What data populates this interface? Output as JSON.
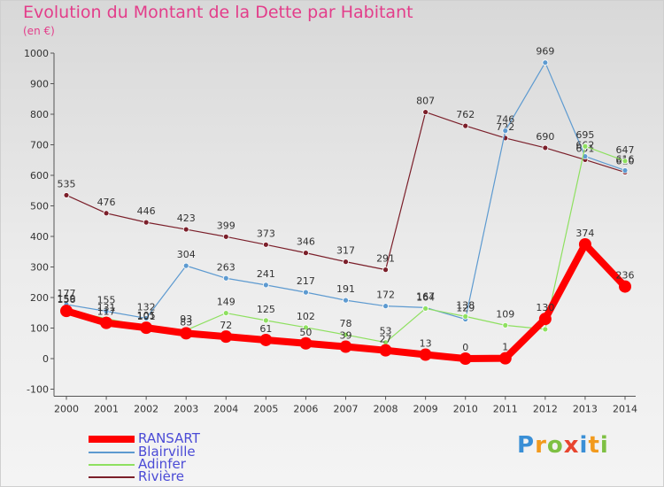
{
  "chart_data": {
    "type": "line",
    "title": "Evolution du Montant de la Dette par Habitant",
    "unit_label": "(en €)",
    "x": [
      "2000",
      "2001",
      "2002",
      "2003",
      "2004",
      "2005",
      "2006",
      "2007",
      "2008",
      "2009",
      "2010",
      "2011",
      "2012",
      "2013",
      "2014"
    ],
    "ylim": [
      -100,
      1000
    ],
    "yticks": [
      "-100",
      "0",
      "100",
      "200",
      "300",
      "400",
      "500",
      "600",
      "700",
      "800",
      "900",
      "1000"
    ],
    "grid": false,
    "legend_placement": "bottom-left",
    "series": [
      {
        "name": "Rivière",
        "color": "#7b1f2a",
        "width": 1.2,
        "point_r": 3,
        "values": [
          535,
          476,
          446,
          423,
          399,
          373,
          346,
          317,
          291,
          807,
          762,
          722,
          690,
          651,
          610
        ],
        "labels": [
          "535",
          "476",
          "446",
          "423",
          "399",
          "373",
          "346",
          "317",
          "291",
          "807",
          "762",
          "722",
          "690",
          "651",
          "610"
        ]
      },
      {
        "name": "Blairville",
        "color": "#5d9ad0",
        "width": 1.2,
        "point_r": 3,
        "values": [
          177,
          155,
          132,
          304,
          263,
          241,
          217,
          191,
          172,
          167,
          129,
          746,
          969,
          662,
          616
        ],
        "labels": [
          "177",
          "155",
          "132",
          "304",
          "263",
          "241",
          "217",
          "191",
          "172",
          "167",
          "129",
          "746",
          "969",
          "662",
          "616"
        ]
      },
      {
        "name": "Adinfer",
        "color": "#8ee060",
        "width": 1.2,
        "point_r": 3,
        "values": [
          159,
          131,
          105,
          93,
          149,
          125,
          102,
          78,
          53,
          164,
          138,
          109,
          96,
          695,
          647
        ],
        "labels": [
          "159",
          "131",
          "105",
          "93",
          "149",
          "125",
          "102",
          "78",
          "53",
          "164",
          "138",
          "109",
          "",
          "695",
          "647"
        ]
      },
      {
        "name": "RANSART",
        "color": "#ff0000",
        "width": 8,
        "point_r": 7,
        "values": [
          156,
          117,
          101,
          83,
          72,
          61,
          50,
          39,
          27,
          13,
          0,
          1,
          130,
          374,
          236
        ],
        "labels": [
          "156",
          "117",
          "101",
          "83",
          "72",
          "61",
          "50",
          "39",
          "27",
          "13",
          "0",
          "1",
          "130",
          "374",
          "236"
        ]
      }
    ],
    "legend": [
      "RANSART",
      "Blairville",
      "Adinfer",
      "Rivière"
    ]
  },
  "logo": {
    "letters": [
      {
        "ch": "P",
        "color": "#3a8fd6"
      },
      {
        "ch": "r",
        "color": "#f29a1d"
      },
      {
        "ch": "o",
        "color": "#7ec043"
      },
      {
        "ch": "x",
        "color": "#e8452f"
      },
      {
        "ch": "i",
        "color": "#3a8fd6"
      },
      {
        "ch": "t",
        "color": "#f29a1d"
      },
      {
        "ch": "i",
        "color": "#7ec043"
      }
    ]
  }
}
